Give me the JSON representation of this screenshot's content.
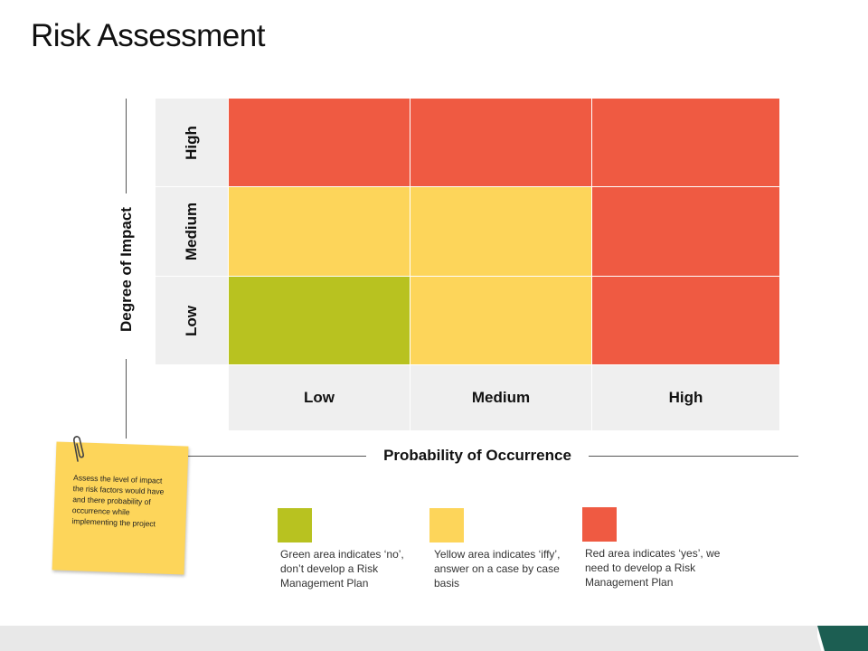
{
  "title": "Risk Assessment",
  "colors": {
    "red": "#ef5a42",
    "yellow": "#fdd55a",
    "green": "#b8c220",
    "label_bg": "#efefef",
    "footer_accent": "#1c5e52"
  },
  "y_axis": {
    "title": "Degree of Impact",
    "levels": [
      "High",
      "Medium",
      "Low"
    ]
  },
  "x_axis": {
    "title": "Probability of Occurrence",
    "levels": [
      "Low",
      "Medium",
      "High"
    ]
  },
  "matrix": {
    "rows": [
      {
        "impact": "High",
        "cells": [
          "red",
          "red",
          "red"
        ]
      },
      {
        "impact": "Medium",
        "cells": [
          "yellow",
          "yellow",
          "red"
        ]
      },
      {
        "impact": "Low",
        "cells": [
          "green",
          "yellow",
          "red"
        ]
      }
    ]
  },
  "note": {
    "text": "Assess  the level of impact the risk factors would have and there probability of occurrence while implementing the project",
    "icon": "paperclip-icon"
  },
  "legend": [
    {
      "color": "green",
      "text": "Green area indicates ‘no’, don’t develop a Risk Management Plan"
    },
    {
      "color": "yellow",
      "text": "Yellow area indicates ‘iffy’, answer on a case by case basis"
    },
    {
      "color": "red",
      "text": "Red area indicates ‘yes’, we need to develop a Risk Management Plan"
    }
  ]
}
